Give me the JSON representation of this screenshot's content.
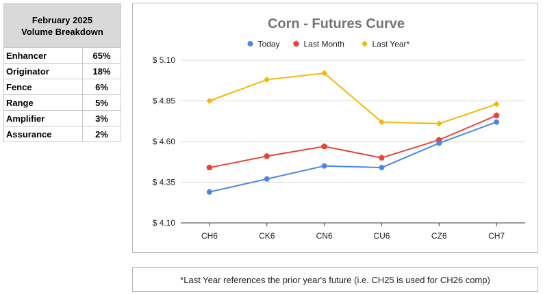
{
  "volume_table": {
    "header_line1": "February 2025",
    "header_line2": "Volume Breakdown",
    "rows": [
      {
        "label": "Enhancer",
        "value": "65%"
      },
      {
        "label": "Originator",
        "value": "18%"
      },
      {
        "label": "Fence",
        "value": "6%"
      },
      {
        "label": "Range",
        "value": "5%"
      },
      {
        "label": "Amplifier",
        "value": "3%"
      },
      {
        "label": "Assurance",
        "value": "2%"
      }
    ]
  },
  "chart_data": {
    "type": "line",
    "title": "Corn - Futures Curve",
    "xlabel": "",
    "ylabel": "",
    "categories": [
      "CH6",
      "CK6",
      "CN6",
      "CU6",
      "CZ6",
      "CH7"
    ],
    "ylim": [
      4.1,
      5.1
    ],
    "yticks": [
      4.1,
      4.35,
      4.6,
      4.85,
      5.1
    ],
    "ytick_labels": [
      "$ 4.10",
      "$ 4.35",
      "$ 4.60",
      "$ 4.85",
      "$ 5.10"
    ],
    "grid": true,
    "legend_position": "top",
    "series": [
      {
        "name": "Today",
        "color": "#4a86e8",
        "marker": "circle",
        "values": [
          4.29,
          4.37,
          4.45,
          4.44,
          4.59,
          4.72
        ]
      },
      {
        "name": "Last Month",
        "color": "#e84335",
        "marker": "pentagon",
        "values": [
          4.44,
          4.51,
          4.57,
          4.5,
          4.61,
          4.76
        ]
      },
      {
        "name": "Last Year*",
        "color": "#f5b800",
        "marker": "diamond",
        "values": [
          4.85,
          4.98,
          5.02,
          4.72,
          4.71,
          4.83
        ]
      }
    ]
  },
  "footnote": "*Last Year references the prior year's future (i.e. CH25 is used for CH26 comp)"
}
